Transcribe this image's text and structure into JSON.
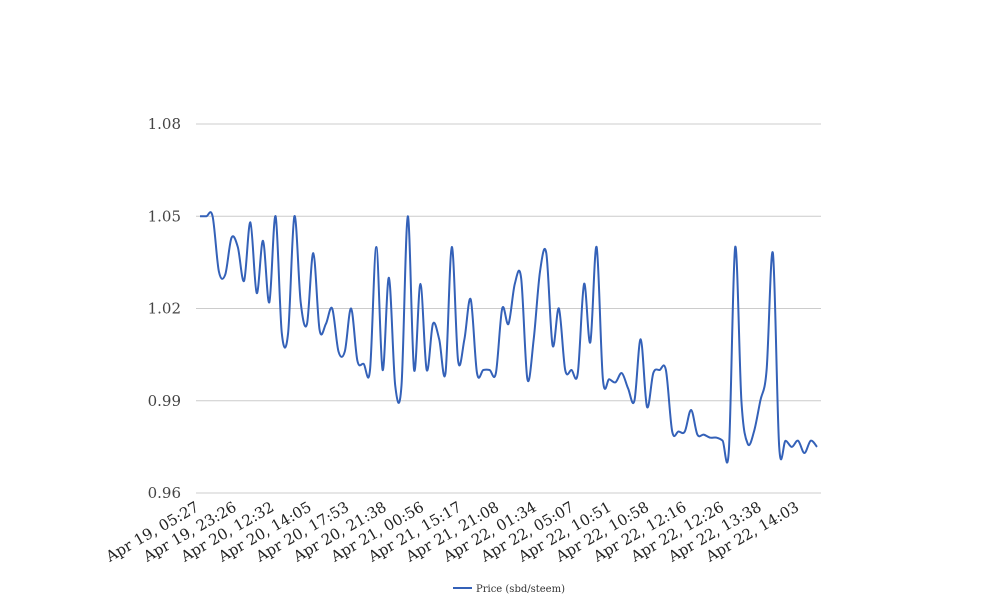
{
  "chart_data": {
    "type": "line",
    "title": "",
    "xlabel": "",
    "ylabel": "",
    "ylim": [
      0.96,
      1.08
    ],
    "yticks": [
      "0.96",
      "0.99",
      "1.02",
      "1.05",
      "1.08"
    ],
    "ytick_values": [
      0.96,
      0.99,
      1.02,
      1.05,
      1.08
    ],
    "xtick_labels": [
      "Apr 19, 05:27",
      "Apr 19, 23:26",
      "Apr 20, 12:32",
      "Apr 20, 14:05",
      "Apr 20, 17:53",
      "Apr 20, 21:38",
      "Apr 21, 00:56",
      "Apr 21, 15:17",
      "Apr 21, 21:08",
      "Apr 22, 01:34",
      "Apr 22, 05:07",
      "Apr 22, 10:51",
      "Apr 22, 10:58",
      "Apr 22, 12:16",
      "Apr 22, 12:26",
      "Apr 22, 13:38",
      "Apr 22, 14:03"
    ],
    "grid": true,
    "legend_position": "bottom",
    "series": [
      {
        "name": "Price (sbd/steem)",
        "color": "#3461b8",
        "values": [
          1.05,
          1.05,
          1.05,
          1.032,
          1.031,
          1.043,
          1.04,
          1.029,
          1.048,
          1.025,
          1.042,
          1.022,
          1.05,
          1.012,
          1.012,
          1.05,
          1.022,
          1.015,
          1.038,
          1.013,
          1.015,
          1.02,
          1.006,
          1.006,
          1.02,
          1.003,
          1.002,
          1.0,
          1.04,
          1.0,
          1.03,
          0.995,
          0.995,
          1.05,
          1.0,
          1.028,
          1.0,
          1.015,
          1.01,
          0.999,
          1.04,
          1.003,
          1.01,
          1.023,
          0.999,
          1.0,
          1.0,
          0.999,
          1.02,
          1.015,
          1.028,
          1.03,
          0.997,
          1.01,
          1.032,
          1.038,
          1.008,
          1.02,
          1.0,
          1.0,
          0.999,
          1.028,
          1.009,
          1.04,
          0.997,
          0.997,
          0.996,
          0.999,
          0.994,
          0.99,
          1.01,
          0.988,
          0.999,
          1.0,
          1.0,
          0.98,
          0.98,
          0.98,
          0.987,
          0.979,
          0.979,
          0.978,
          0.978,
          0.977,
          0.974,
          1.04,
          0.99,
          0.976,
          0.98,
          0.99,
          1.0,
          1.038,
          0.975,
          0.977,
          0.975,
          0.977,
          0.973,
          0.977,
          0.975
        ]
      }
    ]
  }
}
